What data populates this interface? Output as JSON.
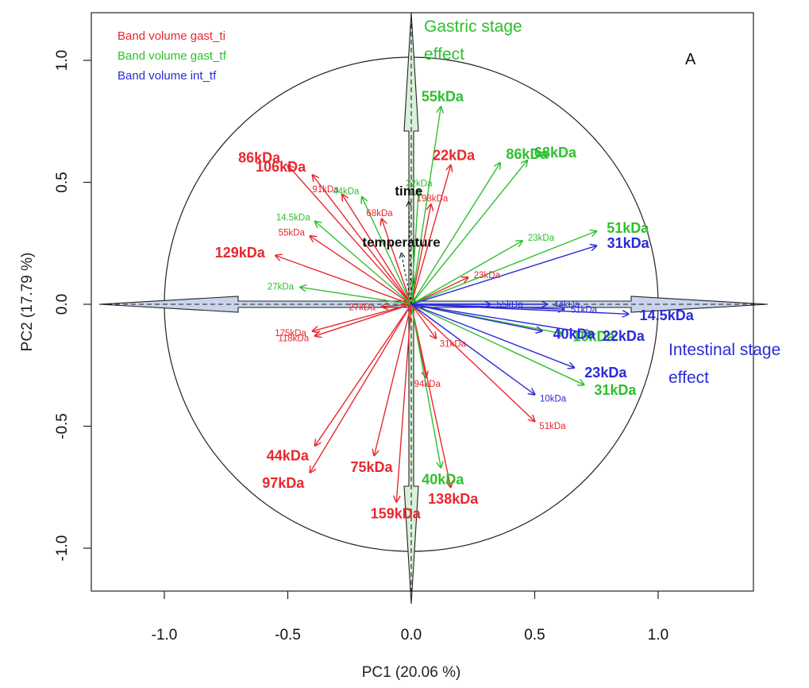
{
  "chart_data": {
    "type": "scatter",
    "subtype": "PCA correlation circle (biplot of variable loadings)",
    "panel_label": "A",
    "xlabel": "PC1 (20.06 %)",
    "ylabel": "PC2 (17.79 %)",
    "xlim": [
      -1.3,
      1.45
    ],
    "ylim": [
      -1.18,
      1.2
    ],
    "x_ticks": [
      "-1.0",
      "-0.5",
      "0.0",
      "0.5",
      "1.0"
    ],
    "y_ticks": [
      "-1.0",
      "-0.5",
      "0.0",
      "0.5",
      "1.0"
    ],
    "x_tick_values": [
      -1.0,
      -0.5,
      0.0,
      0.5,
      1.0
    ],
    "y_tick_values": [
      -1.0,
      -0.5,
      0.0,
      0.5,
      1.0
    ],
    "unit_circle_radius": 1.0,
    "grid": false,
    "legend_position": "top-left",
    "legend": [
      {
        "label": "Band volume gast_ti",
        "color": "#e8282e"
      },
      {
        "label": "Band volume gast_tf",
        "color": "#2fbf2f"
      },
      {
        "label": "Band volume int_tf",
        "color": "#2b2bd9"
      }
    ],
    "stage_arrows": [
      {
        "label_lines": [
          "Gastric stage",
          "effect"
        ],
        "direction": "vertical",
        "color": "#2fbf2f",
        "fill": "#d8f0d8"
      },
      {
        "label_lines": [
          "Intestinal stage",
          "effect"
        ],
        "direction": "horizontal",
        "color": "#2b2bd9",
        "fill": "#c8d4ec"
      }
    ],
    "supplementary_variables": [
      {
        "label": "time",
        "x": -0.01,
        "y": 0.42
      },
      {
        "label": "temperature",
        "x": -0.04,
        "y": 0.21
      }
    ],
    "series": [
      {
        "name": "Band volume gast_ti",
        "color": "#e8282e",
        "points": [
          {
            "label": "86kDa",
            "x": -0.5,
            "y": 0.57,
            "size": "big"
          },
          {
            "label": "106kDa",
            "x": -0.4,
            "y": 0.53,
            "size": "big"
          },
          {
            "label": "22kDa",
            "x": 0.16,
            "y": 0.57,
            "size": "big"
          },
          {
            "label": "129kDa",
            "x": -0.55,
            "y": 0.2,
            "size": "big"
          },
          {
            "label": "44kDa",
            "x": -0.39,
            "y": -0.58,
            "size": "big"
          },
          {
            "label": "97kDa",
            "x": -0.41,
            "y": -0.69,
            "size": "big"
          },
          {
            "label": "75kDa",
            "x": -0.15,
            "y": -0.62,
            "size": "big"
          },
          {
            "label": "159kDa",
            "x": -0.06,
            "y": -0.81,
            "size": "big"
          },
          {
            "label": "138kDa",
            "x": 0.16,
            "y": -0.75,
            "size": "big"
          },
          {
            "label": "91kDa",
            "x": -0.28,
            "y": 0.45,
            "size": "small"
          },
          {
            "label": "68kDa",
            "x": -0.12,
            "y": 0.35,
            "size": "small"
          },
          {
            "label": "198kDa",
            "x": 0.08,
            "y": 0.41,
            "size": "small"
          },
          {
            "label": "55kDa",
            "x": -0.41,
            "y": 0.28,
            "size": "small"
          },
          {
            "label": "23kDa",
            "x": 0.23,
            "y": 0.11,
            "size": "small"
          },
          {
            "label": "27kDa",
            "x": -0.12,
            "y": -0.01,
            "size": "small"
          },
          {
            "label": "175kDa",
            "x": -0.4,
            "y": -0.11,
            "size": "small"
          },
          {
            "label": "118kDa",
            "x": -0.39,
            "y": -0.13,
            "size": "small"
          },
          {
            "label": "31kDa",
            "x": 0.1,
            "y": -0.14,
            "size": "small"
          },
          {
            "label": "94kDa",
            "x": 0.06,
            "y": -0.3,
            "size": "small"
          },
          {
            "label": "51kDa",
            "x": 0.5,
            "y": -0.48,
            "size": "small"
          }
        ]
      },
      {
        "name": "Band volume gast_tf",
        "color": "#2fbf2f",
        "points": [
          {
            "label": "55kDa",
            "x": 0.12,
            "y": 0.81,
            "size": "big"
          },
          {
            "label": "86kDa",
            "x": 0.36,
            "y": 0.58,
            "size": "big"
          },
          {
            "label": "68kDa",
            "x": 0.47,
            "y": 0.59,
            "size": "big"
          },
          {
            "label": "51kDa",
            "x": 0.75,
            "y": 0.3,
            "size": "big"
          },
          {
            "label": "10kDa",
            "x": 0.61,
            "y": -0.12,
            "size": "big"
          },
          {
            "label": "31kDa",
            "x": 0.7,
            "y": -0.33,
            "size": "big"
          },
          {
            "label": "40kDa",
            "x": 0.12,
            "y": -0.67,
            "size": "big"
          },
          {
            "label": "22kDa",
            "x": 0.03,
            "y": 0.47,
            "size": "small"
          },
          {
            "label": "44kDa",
            "x": -0.2,
            "y": 0.44,
            "size": "small"
          },
          {
            "label": "14.5kDa",
            "x": -0.39,
            "y": 0.34,
            "size": "small"
          },
          {
            "label": "23kDa",
            "x": 0.45,
            "y": 0.26,
            "size": "small"
          },
          {
            "label": "27kDa",
            "x": -0.45,
            "y": 0.07,
            "size": "small"
          }
        ]
      },
      {
        "name": "Band volume int_tf",
        "color": "#2b2bd9",
        "points": [
          {
            "label": "31kDa",
            "x": 0.75,
            "y": 0.24,
            "size": "big"
          },
          {
            "label": "14.5kDa",
            "x": 0.88,
            "y": -0.04,
            "size": "big"
          },
          {
            "label": "22kDa",
            "x": 0.73,
            "y": -0.12,
            "size": "big"
          },
          {
            "label": "40kDa",
            "x": 0.53,
            "y": -0.11,
            "size": "big"
          },
          {
            "label": "23kDa",
            "x": 0.66,
            "y": -0.26,
            "size": "big"
          },
          {
            "label": "44kDa",
            "x": 0.55,
            "y": 0.0,
            "size": "small"
          },
          {
            "label": "55kDa",
            "x": 0.32,
            "y": 0.0,
            "size": "small"
          },
          {
            "label": "51kDa",
            "x": 0.62,
            "y": -0.02,
            "size": "small"
          },
          {
            "label": "10kDa",
            "x": 0.5,
            "y": -0.37,
            "size": "small"
          }
        ]
      }
    ]
  }
}
